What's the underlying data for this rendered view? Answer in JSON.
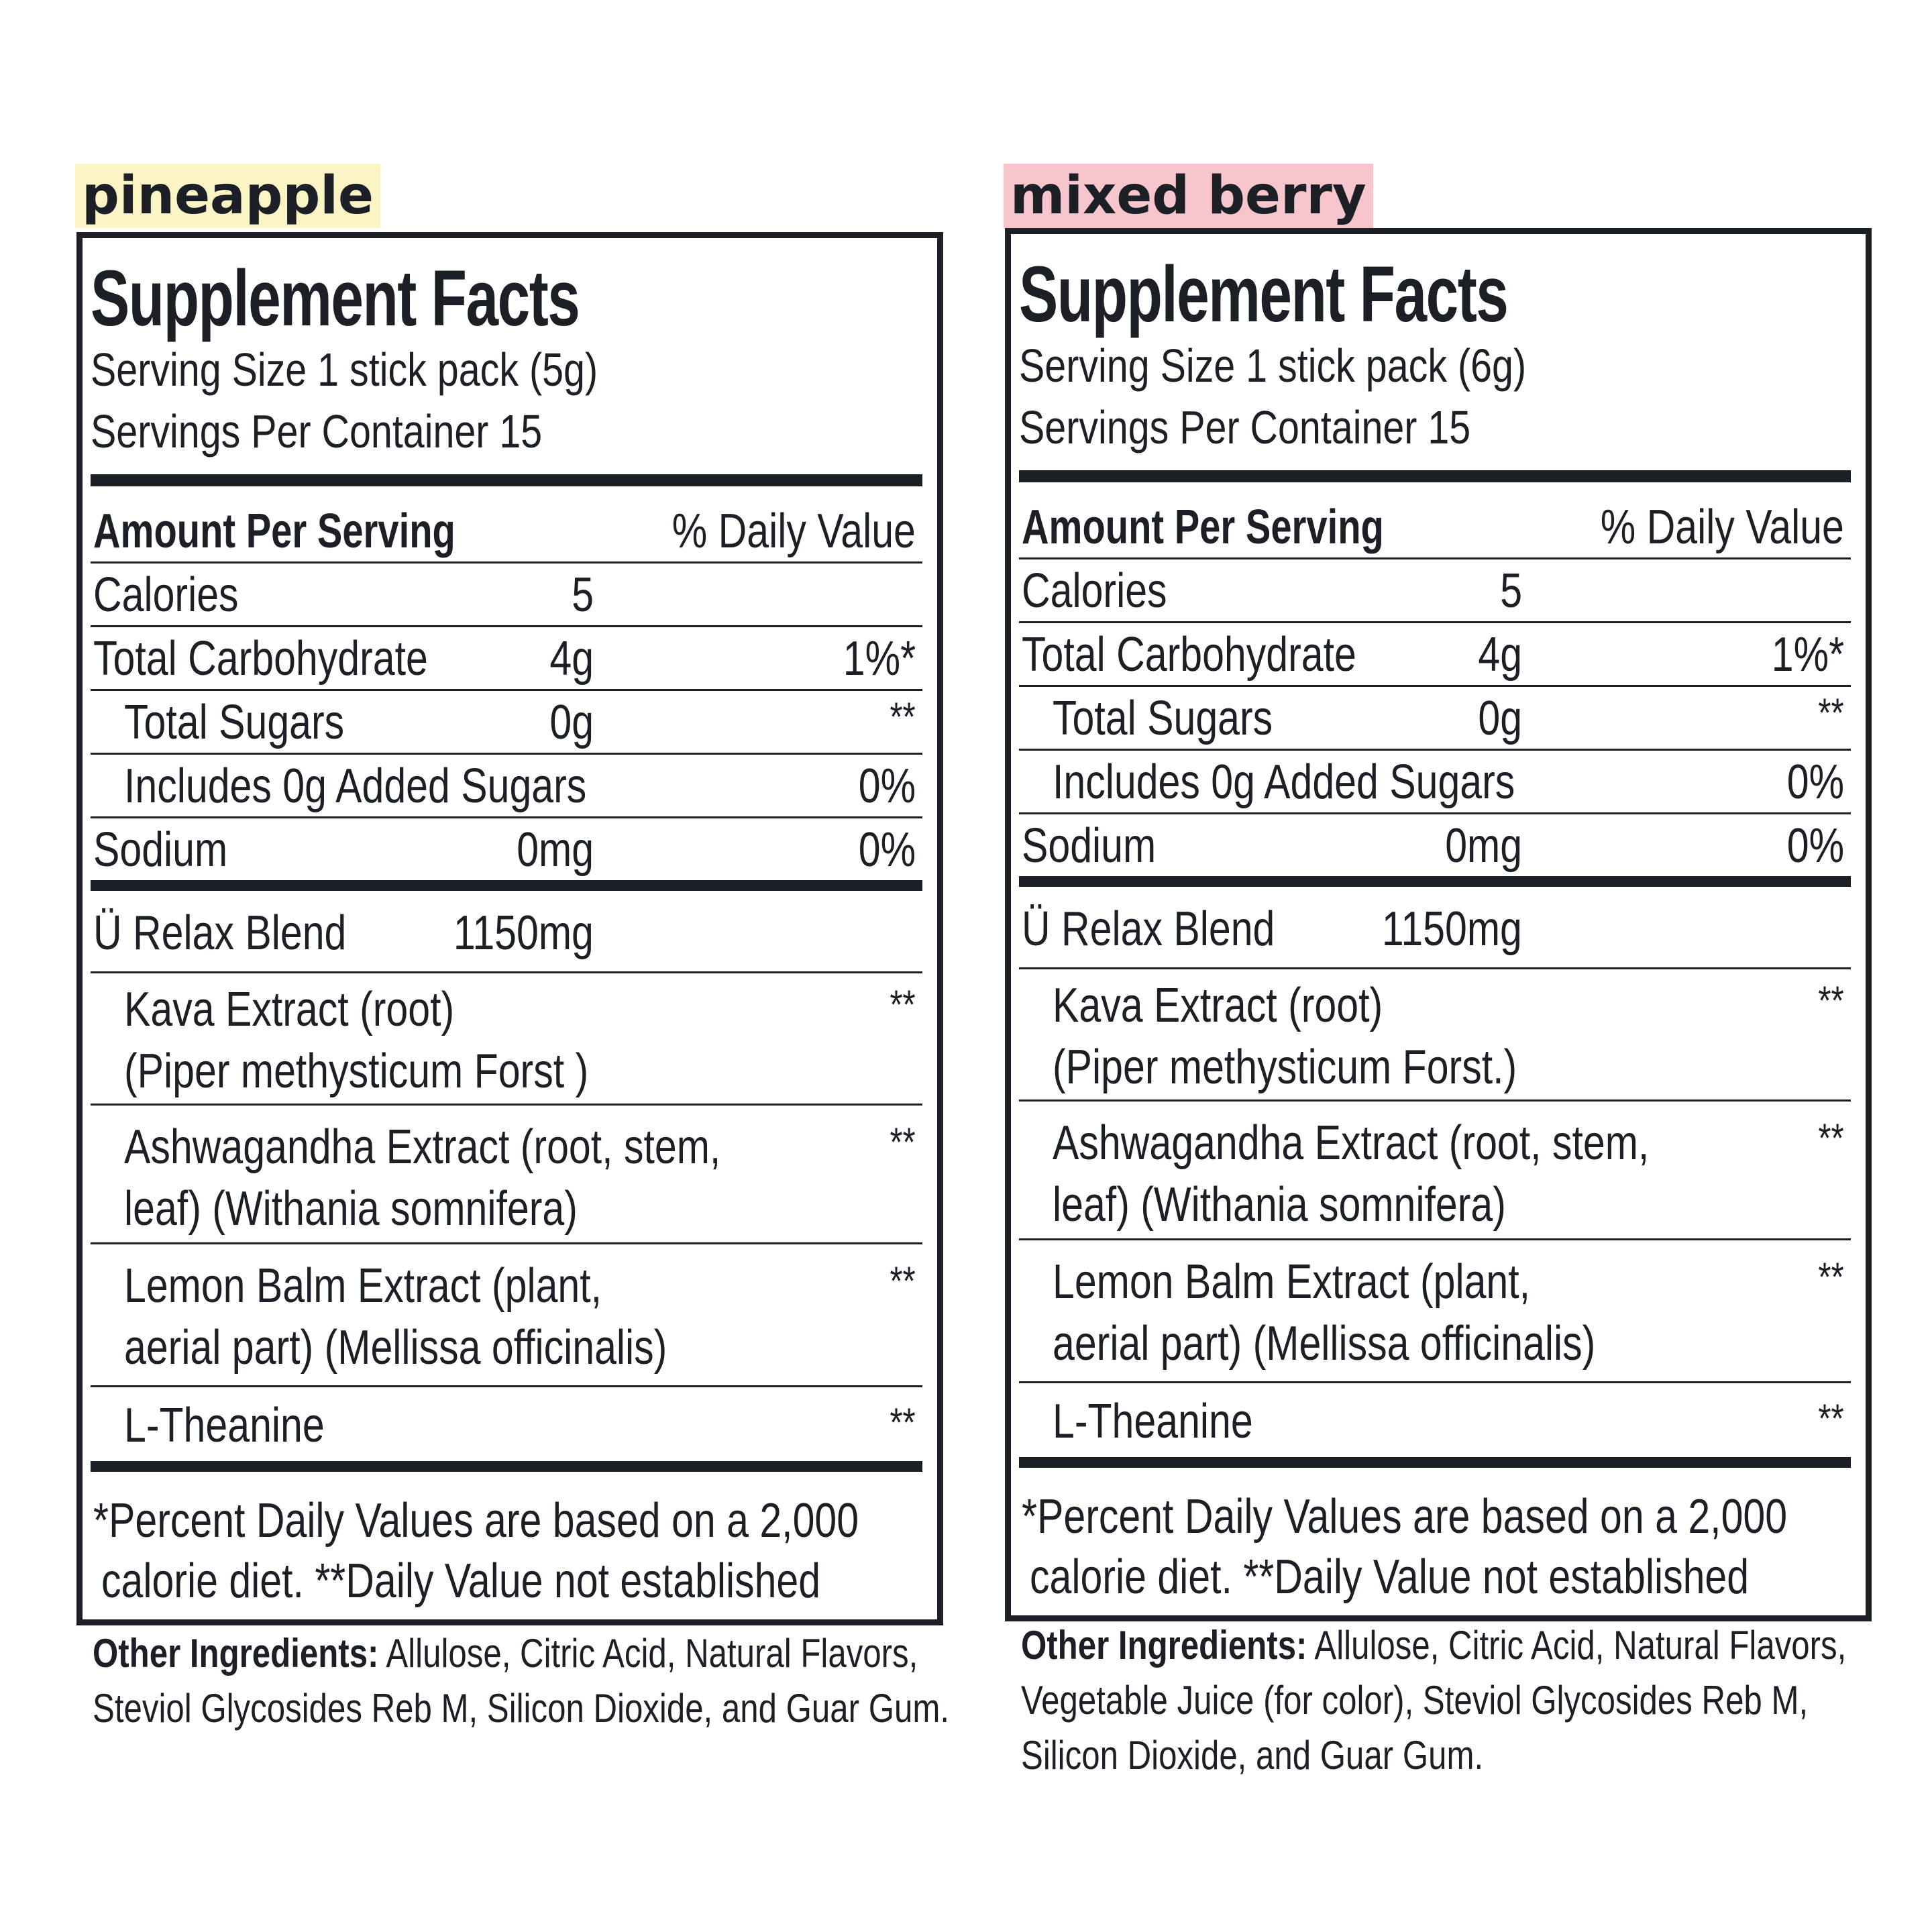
{
  "panels": [
    {
      "flavor": "pineapple",
      "flavor_color": "#fbf5c6",
      "title": "Supplement Facts",
      "serving_size": "Serving Size 1 stick pack (5g)",
      "servings_per_container": "Servings Per Container 15",
      "header_left": "Amount Per Serving",
      "header_right": "% Daily Value",
      "calories_label": "Calories",
      "calories_value": "5",
      "nutrients": [
        {
          "name": "Total Carbohydrate",
          "amount": "4g",
          "dv": "1%*"
        },
        {
          "name": "Total Sugars",
          "amount": "0g",
          "dv": "**"
        },
        {
          "name": "Includes 0g Added Sugars",
          "amount": "",
          "dv": "0%"
        },
        {
          "name": "Sodium",
          "amount": "0mg",
          "dv": "0%"
        }
      ],
      "blend_name": "Ü Relax Blend",
      "blend_amount": "1150mg",
      "ingredients": [
        {
          "line1": "Kava Extract (root)",
          "line2": "(Piper methysticum Forst )",
          "dv": "**"
        },
        {
          "line1": "Ashwagandha Extract (root, stem,",
          "line2": "leaf) (Withania somnifera)",
          "dv": "**"
        },
        {
          "line1": "Lemon Balm Extract (plant,",
          "line2": "aerial part) (Mellissa officinalis)",
          "dv": "**"
        },
        {
          "line1": "L-Theanine",
          "line2": "",
          "dv": "**"
        }
      ],
      "footnote_line1": "*Percent Daily Values are based on a 2,000",
      "footnote_line2": "calorie diet. **Daily Value not established",
      "other_label": "Other Ingredients:",
      "other_line1": "Allulose, Citric Acid, Natural Flavors,",
      "other_line2": "Steviol Glycosides Reb M, Silicon Dioxide, and Guar Gum.",
      "other_line3": ""
    },
    {
      "flavor": "mixed berry",
      "flavor_color": "#f7c6cc",
      "title": "Supplement Facts",
      "serving_size": "Serving Size 1 stick pack (6g)",
      "servings_per_container": "Servings Per Container 15",
      "header_left": "Amount Per Serving",
      "header_right": "% Daily Value",
      "calories_label": "Calories",
      "calories_value": "5",
      "nutrients": [
        {
          "name": "Total Carbohydrate",
          "amount": "4g",
          "dv": "1%*"
        },
        {
          "name": "Total Sugars",
          "amount": "0g",
          "dv": "**"
        },
        {
          "name": "Includes 0g Added Sugars",
          "amount": "",
          "dv": "0%"
        },
        {
          "name": "Sodium",
          "amount": "0mg",
          "dv": "0%"
        }
      ],
      "blend_name": "Ü Relax Blend",
      "blend_amount": "1150mg",
      "ingredients": [
        {
          "line1": "Kava Extract (root)",
          "line2": "(Piper methysticum Forst.)",
          "dv": "**"
        },
        {
          "line1": "Ashwagandha Extract (root, stem,",
          "line2": "leaf) (Withania somnifera)",
          "dv": "**"
        },
        {
          "line1": "Lemon Balm Extract (plant,",
          "line2": "aerial part) (Mellissa officinalis)",
          "dv": "**"
        },
        {
          "line1": "L-Theanine",
          "line2": "",
          "dv": "**"
        }
      ],
      "footnote_line1": "*Percent Daily Values are based on a 2,000",
      "footnote_line2": "calorie diet. **Daily Value not established",
      "other_label": "Other Ingredients:",
      "other_line1": "Allulose, Citric Acid, Natural Flavors,",
      "other_line2": "Vegetable Juice (for color), Steviol Glycosides Reb M,",
      "other_line3": "Silicon Dioxide, and Guar Gum."
    }
  ]
}
